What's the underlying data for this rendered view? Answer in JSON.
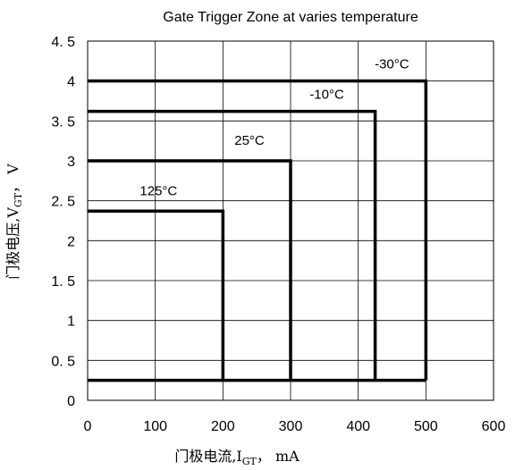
{
  "chart_data": {
    "type": "line",
    "title": "Gate Trigger Zone at varies temperature",
    "xlabel": {
      "prefix": "门极电流,I",
      "sub": "GT",
      "suffix": "， mA"
    },
    "ylabel": {
      "prefix": "门极电压,V",
      "sub": "GT",
      "suffix": "， V"
    },
    "xlim": [
      0,
      600
    ],
    "ylim": [
      0,
      4.5
    ],
    "x_ticks": [
      0,
      100,
      200,
      300,
      400,
      500,
      600
    ],
    "x_tick_labels": [
      "0",
      "100",
      "200",
      "300",
      "400",
      "500",
      "600"
    ],
    "y_ticks": [
      0,
      0.5,
      1,
      1.5,
      2,
      2.5,
      3,
      3.5,
      4,
      4.5
    ],
    "y_tick_labels": [
      "0",
      "0. 5",
      "1",
      "1. 5",
      "2",
      "2. 5",
      "3",
      "3. 5",
      "4",
      "4. 5"
    ],
    "grid": true,
    "baseline": {
      "x": [
        0,
        500
      ],
      "y": 0.25
    },
    "series": [
      {
        "name": "-30°C",
        "x": [
          0,
          500,
          500
        ],
        "y": [
          4.0,
          4.0,
          0.25
        ]
      },
      {
        "name": "-10°C",
        "x": [
          0,
          425,
          425
        ],
        "y": [
          3.62,
          3.62,
          0.25
        ]
      },
      {
        "name": "25°C",
        "x": [
          0,
          300,
          300
        ],
        "y": [
          3.0,
          3.0,
          0.25
        ]
      },
      {
        "name": "125°C",
        "x": [
          0,
          200,
          200
        ],
        "y": [
          2.37,
          2.37,
          0.25
        ]
      }
    ]
  }
}
